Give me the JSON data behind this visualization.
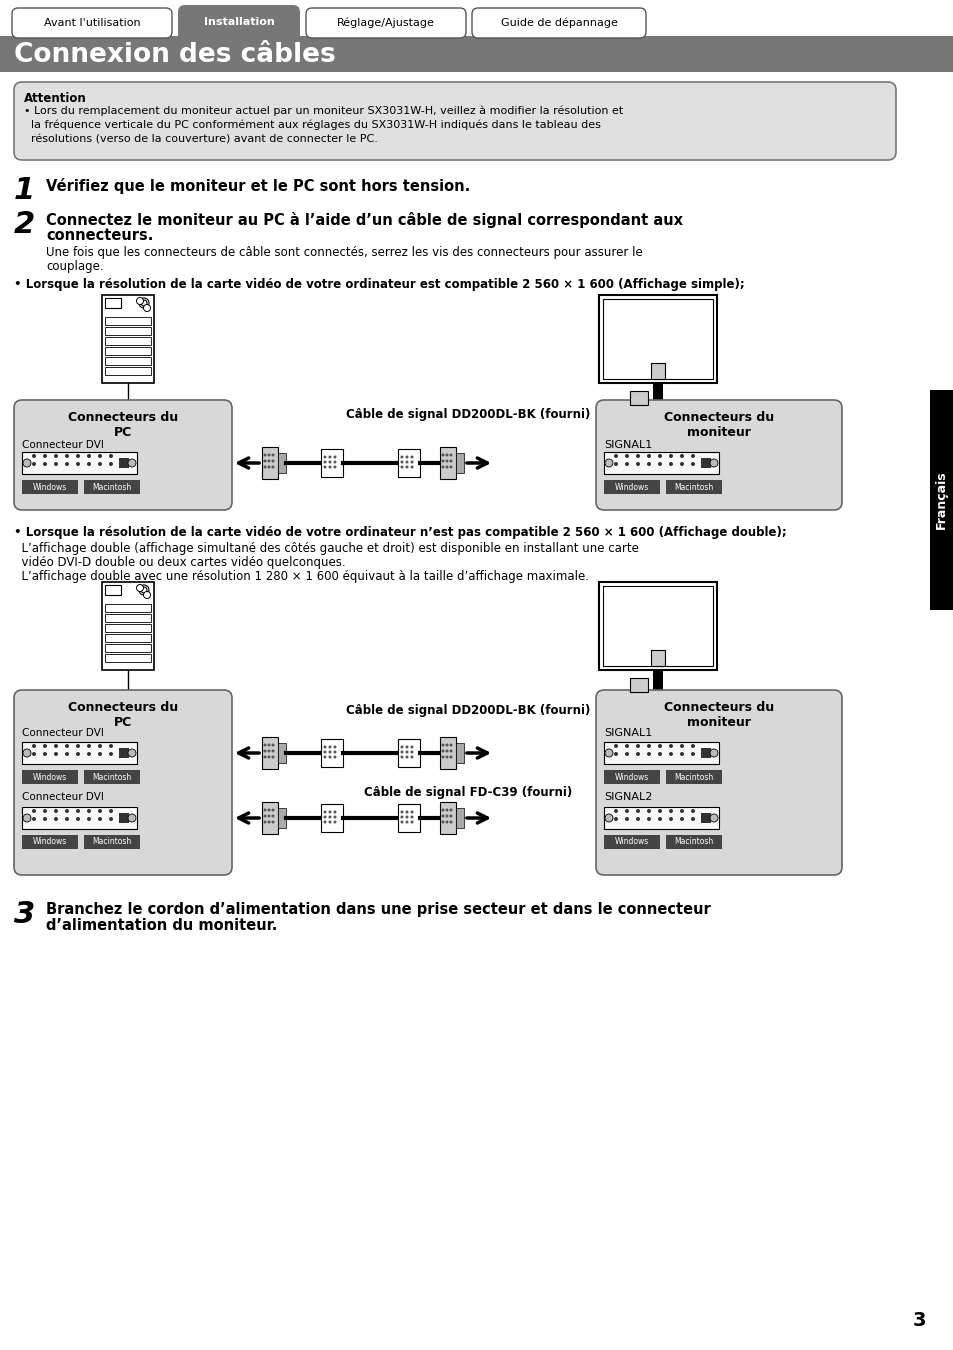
{
  "bg_color": "#ffffff",
  "tab_labels": [
    "Avant l'utilisation",
    "Installation",
    "Réglage/Ajustage",
    "Guide de dépannage"
  ],
  "header_bg": "#777777",
  "header_title": "Connexion des câbles",
  "attention_title": "Attention",
  "attention_line1": "• Lors du remplacement du moniteur actuel par un moniteur SX3031W-H, veillez à modifier la résolution et",
  "attention_line2": "  la fréquence verticale du PC conformément aux réglages du SX3031W-H indiqués dans le tableau des",
  "attention_line3": "  résolutions (verso de la couverture) avant de connecter le PC.",
  "step1_text": "Vérifiez que le moniteur et le PC sont hors tension.",
  "step2_line1": "Connectez le moniteur au PC à l’aide d’un câble de signal correspondant aux",
  "step2_line2": "connecteurs.",
  "step2_sub1": "Une fois que les connecteurs de câble sont connectés, serrez les vis des connecteurs pour assurer le",
  "step2_sub2": "couplage.",
  "bullet1": "• Lorsque la résolution de la carte vidéo de votre ordinateur est compatible 2 560 × 1 600 (Affichage simple);",
  "label_pc": "Connecteurs du\nPC",
  "label_mon": "Connecteurs du\nmoniteur",
  "label_dvi": "Connecteur DVI",
  "label_signal1": "SIGNAL1",
  "label_signal2": "SIGNAL2",
  "label_cable1": "Câble de signal DD200DL-BK (fourni)",
  "label_cable2": "Câble de signal FD-C39 (fourni)",
  "bullet2": "• Lorsque la résolution de la carte vidéo de votre ordinateur n’est pas compatible 2 560 × 1 600 (Affichage double);",
  "bullet2_s1": "  L’affichage double (affichage simultané des côtés gauche et droit) est disponible en installant une carte",
  "bullet2_s2": "  vidéo DVI-D double ou deux cartes vidéo quelconques.",
  "bullet2_s3": "  L’affichage double avec une résolution 1 280 × 1 600 équivaut à la taille d’affichage maximale.",
  "step3_line1": "Branchez le cordon d’alimentation dans une prise secteur et dans le connecteur",
  "step3_line2": "d’alimentation du moniteur.",
  "page_num": "3",
  "francais": "Français"
}
